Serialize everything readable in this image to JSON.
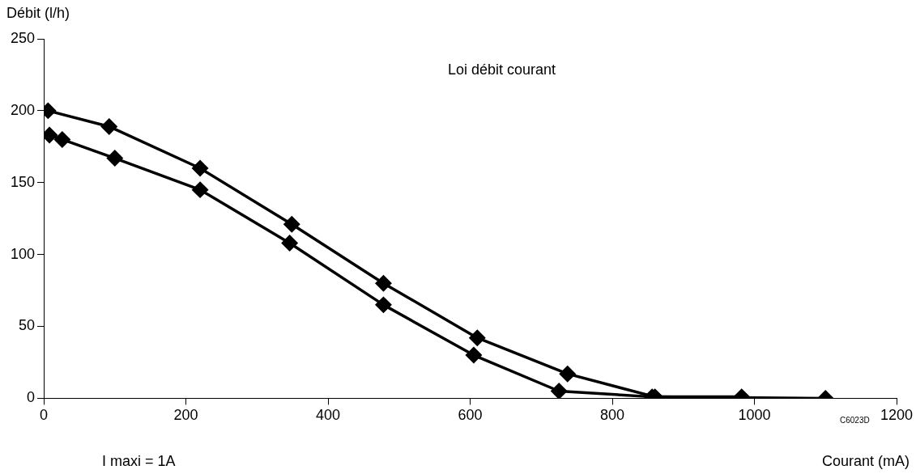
{
  "chart_data": {
    "type": "line",
    "title": "Loi débit courant",
    "xlabel": "Courant (mA)",
    "ylabel": "Débit (l/h)",
    "annotations": [
      "I maxi = 1A",
      "C6023D"
    ],
    "xlim": [
      0,
      1200
    ],
    "xticks": [
      0,
      200,
      400,
      600,
      800,
      1000,
      1200
    ],
    "ylim": [
      0,
      250
    ],
    "yticks": [
      0,
      50,
      100,
      150,
      200,
      250
    ],
    "grid": false,
    "legend": false,
    "marker": "diamond",
    "line_style": "solid",
    "series": [
      {
        "color": "#000000",
        "x": [
          6,
          92,
          220,
          349,
          478,
          610,
          737,
          860,
          982
        ],
        "values": [
          200,
          189,
          160,
          121,
          80,
          42,
          17,
          1,
          1
        ]
      },
      {
        "color": "#000000",
        "x": [
          8,
          26,
          100,
          220,
          346,
          478,
          605,
          725,
          856,
          1100
        ],
        "values": [
          183,
          180,
          167,
          145,
          108,
          65,
          30,
          5,
          1,
          0
        ]
      }
    ]
  }
}
